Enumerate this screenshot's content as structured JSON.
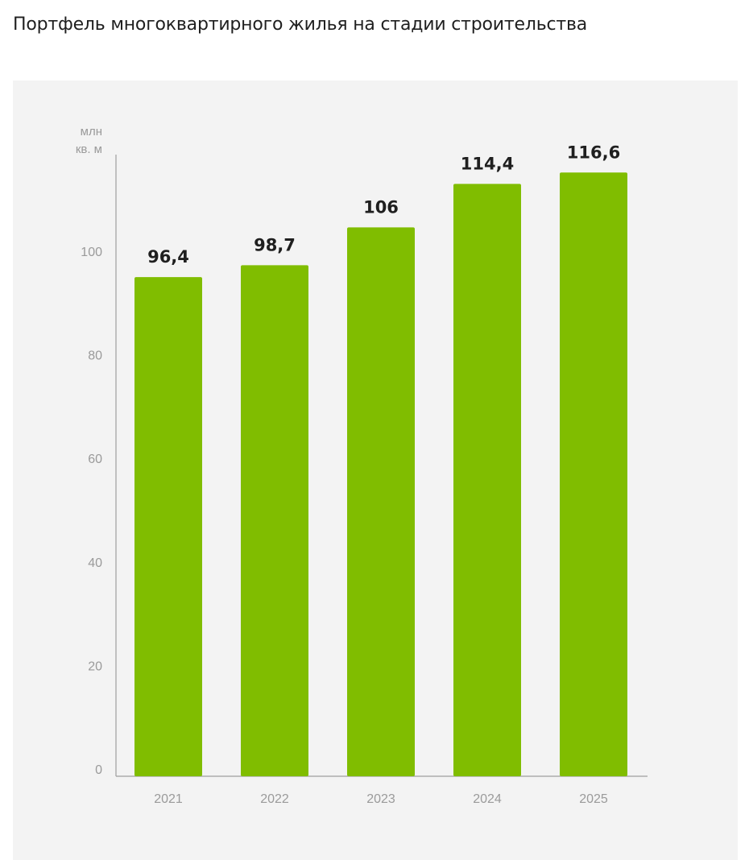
{
  "page": {
    "title": "Портфель многоквартирного жилья на стадии строительства"
  },
  "chart_data": {
    "type": "bar",
    "title": "Портфель многоквартирного жилья на стадии строительства",
    "unit_line1": "млн",
    "unit_line2": "кв. м",
    "categories": [
      "2021",
      "2022",
      "2023",
      "2024",
      "2025"
    ],
    "values": [
      96.4,
      98.7,
      106,
      114.4,
      116.6
    ],
    "value_labels": [
      "96,4",
      "98,7",
      "106",
      "114,4",
      "116,6"
    ],
    "y_ticks": [
      0,
      20,
      40,
      60,
      80,
      100
    ],
    "ylim": [
      0,
      120
    ],
    "bar_color": "#80bd00",
    "grid": false
  }
}
